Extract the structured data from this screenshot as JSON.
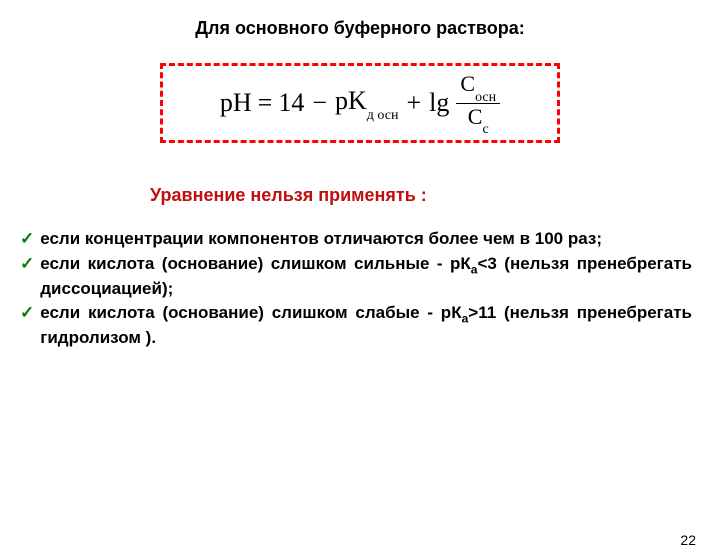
{
  "title": "Для основного буферного раствора:",
  "formula": {
    "lhs": "pH",
    "eq": "=",
    "c14": "14",
    "minus": "−",
    "pK": "pK",
    "pK_sub": "д осн",
    "plus": "+",
    "lg": "lg",
    "frac_num_base": "C",
    "frac_num_sub": "осн",
    "frac_den_base": "C",
    "frac_den_sub": "с"
  },
  "subtitle": "Уравнение нельзя применять :",
  "bullets": [
    {
      "pre": " если концентрации компонентов отличаются более чем в 100 раз;",
      "hasSub": false
    },
    {
      "pre": " если кислота (основание) слишком сильные - рК",
      "sub": "а",
      "post": "<3 (нельзя пренебрегать  диссоциацией);",
      "hasSub": true
    },
    {
      "pre": " если кислота (основание) слишком слабые - рК",
      "sub": "а",
      "post": ">11 (нельзя пренебрегать гидролизом ).",
      "hasSub": true
    }
  ],
  "page": "22",
  "colors": {
    "box_border": "#ff0000",
    "subtitle": "#bf1010",
    "check": "#0a7a0a",
    "text": "#000000"
  }
}
